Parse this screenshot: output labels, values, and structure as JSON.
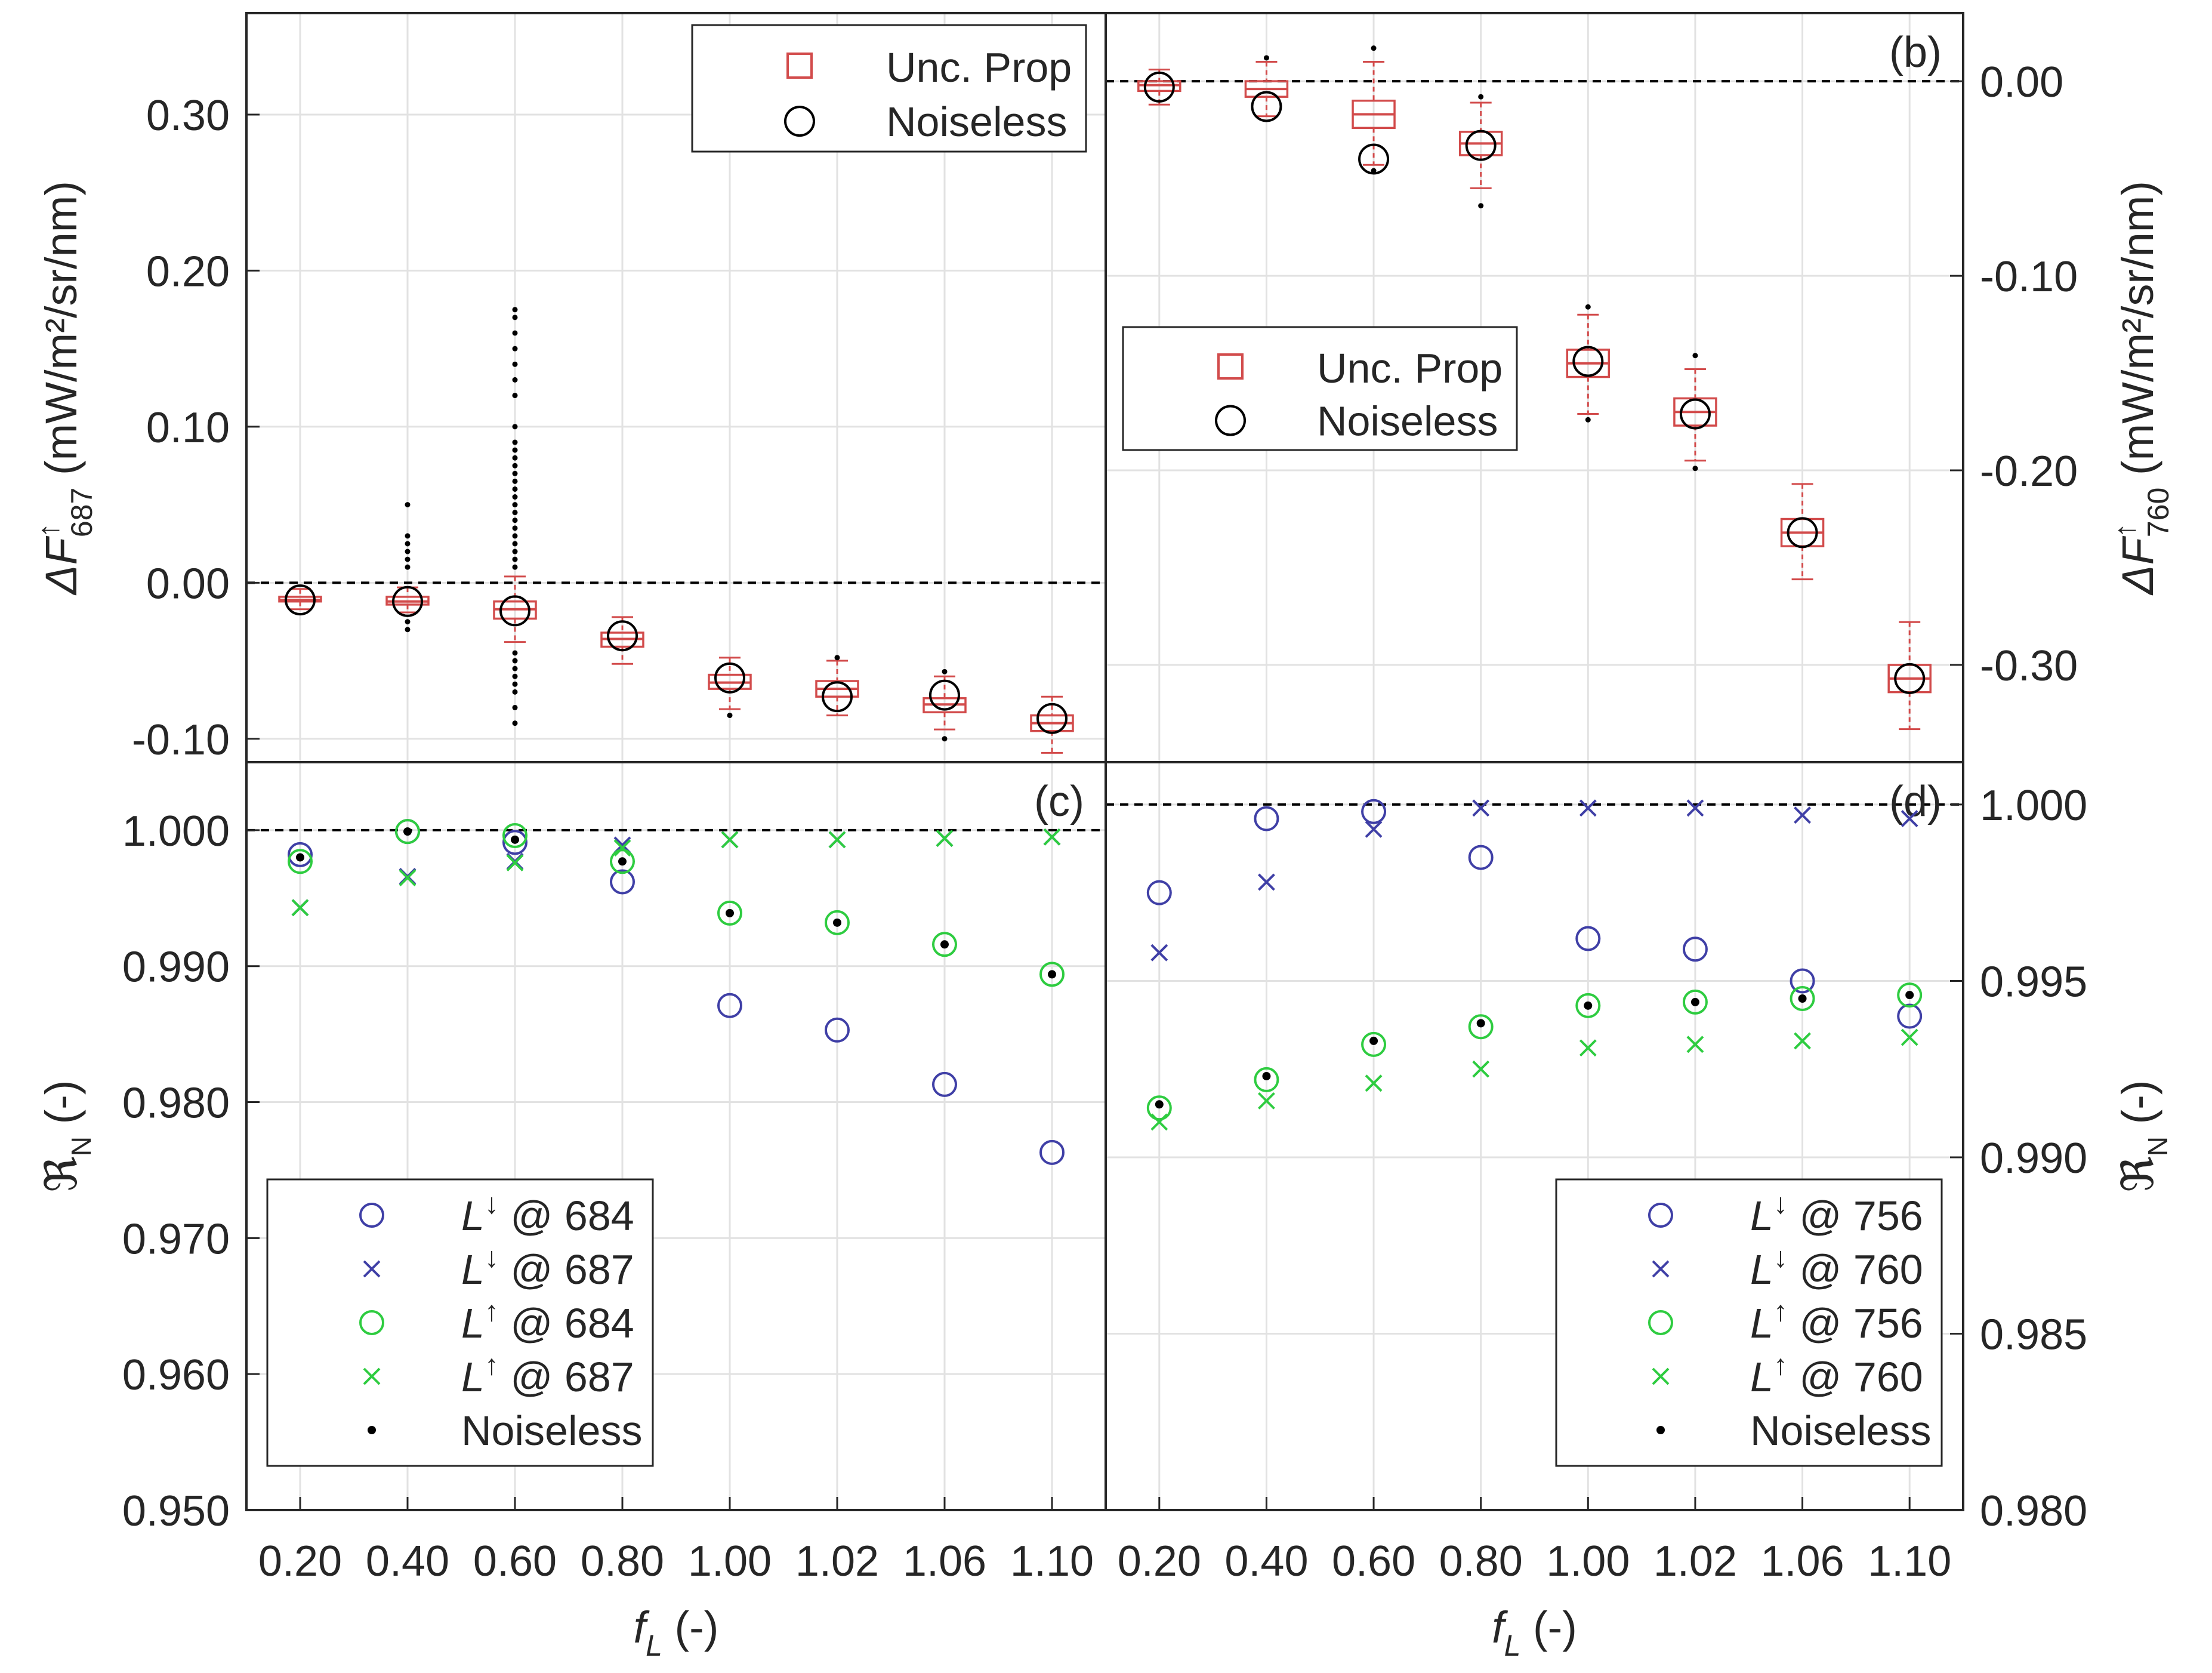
{
  "figure": {
    "categories": [
      "0.20",
      "0.40",
      "0.60",
      "0.80",
      "1.00",
      "1.02",
      "1.06",
      "1.10"
    ],
    "xlabel": "f",
    "xlabel_sub": "L",
    "xlabel_unit": "(-)",
    "colors": {
      "box": "#d24b4b",
      "blue": "#3f3fa6",
      "green": "#2ecc40",
      "black": "#000000",
      "grid": "#e2e2e2"
    }
  },
  "chart_data": [
    {
      "panel": "a",
      "type": "box",
      "label": "",
      "ylabel_prefix": "ΔF",
      "ylabel_sup": "↑",
      "ylabel_sub": "687",
      "ylabel_unit": "(mW/m²/sr/nm)",
      "ylim": [
        -0.115,
        0.365
      ],
      "yticks": [
        "-0.10",
        "0.00",
        "0.10",
        "0.20",
        "0.30"
      ],
      "ytick_values": [
        -0.1,
        0.0,
        0.1,
        0.2,
        0.3
      ],
      "reference_line": 0.0,
      "legend": {
        "position": "top-right",
        "entries": [
          "Unc. Prop",
          "Noiseless"
        ]
      },
      "series": [
        {
          "name": "Unc. Prop",
          "stat": "median",
          "values": [
            -0.011,
            -0.012,
            -0.017,
            -0.036,
            -0.064,
            -0.068,
            -0.078,
            -0.09
          ]
        },
        {
          "name": "Noiseless",
          "values": [
            -0.011,
            -0.012,
            -0.018,
            -0.034,
            -0.061,
            -0.073,
            -0.072,
            -0.087
          ]
        }
      ],
      "box_stats": {
        "q1": [
          -0.012,
          -0.014,
          -0.023,
          -0.041,
          -0.068,
          -0.073,
          -0.083,
          -0.095
        ],
        "q3": [
          -0.009,
          -0.009,
          -0.012,
          -0.032,
          -0.059,
          -0.063,
          -0.074,
          -0.085
        ],
        "whisker_low": [
          -0.017,
          -0.019,
          -0.038,
          -0.052,
          -0.081,
          -0.085,
          -0.094,
          -0.109
        ],
        "whisker_high": [
          -0.004,
          -0.003,
          0.004,
          -0.022,
          -0.048,
          -0.05,
          -0.06,
          -0.073
        ],
        "outliers": [
          [],
          [
            0.05,
            0.03,
            0.025,
            0.02,
            0.015,
            0.01,
            -0.025,
            -0.03
          ],
          [
            0.175,
            0.17,
            0.16,
            0.15,
            0.14,
            0.13,
            0.12,
            0.1,
            0.09,
            0.085,
            0.08,
            0.075,
            0.07,
            0.065,
            0.06,
            0.055,
            0.05,
            0.045,
            0.04,
            0.035,
            0.03,
            0.025,
            0.02,
            0.015,
            0.01,
            -0.045,
            -0.05,
            -0.055,
            -0.06,
            -0.065,
            -0.07,
            -0.08,
            -0.09
          ],
          [],
          [
            -0.085
          ],
          [
            -0.048
          ],
          [
            -0.057,
            -0.1
          ],
          []
        ]
      }
    },
    {
      "panel": "b",
      "type": "box",
      "label": "(b)",
      "ylabel_prefix": "ΔF",
      "ylabel_sup": "↑",
      "ylabel_sub": "760",
      "ylabel_unit": "(mW/m²/sr/nm)",
      "ylim": [
        -0.35,
        0.035
      ],
      "yticks": [
        "-0.30",
        "-0.20",
        "-0.10",
        "0.00"
      ],
      "ytick_values": [
        -0.3,
        -0.2,
        -0.1,
        0.0
      ],
      "reference_line": 0.0,
      "legend": {
        "position": "center-left",
        "entries": [
          "Unc. Prop",
          "Noiseless"
        ]
      },
      "series": [
        {
          "name": "Unc. Prop",
          "stat": "median",
          "values": [
            -0.002,
            -0.004,
            -0.017,
            -0.032,
            -0.145,
            -0.17,
            -0.232,
            -0.307
          ]
        },
        {
          "name": "Noiseless",
          "values": [
            -0.003,
            -0.013,
            -0.04,
            -0.033,
            -0.144,
            -0.171,
            -0.232,
            -0.307
          ]
        }
      ],
      "box_stats": {
        "q1": [
          -0.005,
          -0.008,
          -0.024,
          -0.038,
          -0.152,
          -0.177,
          -0.239,
          -0.314
        ],
        "q3": [
          0.0,
          0.0,
          -0.01,
          -0.026,
          -0.138,
          -0.163,
          -0.225,
          -0.3
        ],
        "whisker_low": [
          -0.012,
          -0.018,
          -0.043,
          -0.055,
          -0.171,
          -0.195,
          -0.256,
          -0.333
        ],
        "whisker_high": [
          0.006,
          0.01,
          0.01,
          -0.011,
          -0.12,
          -0.148,
          -0.207,
          -0.278
        ],
        "outliers": [
          [],
          [
            0.012
          ],
          [
            0.017,
            -0.046
          ],
          [
            -0.008,
            -0.064
          ],
          [
            -0.116,
            -0.174
          ],
          [
            -0.141,
            -0.199
          ],
          [],
          []
        ]
      }
    },
    {
      "panel": "c",
      "type": "scatter",
      "label": "(c)",
      "ylabel_symbol": "ℜ",
      "ylabel_sub": "N",
      "ylabel_unit": "(-)",
      "ylim": [
        0.95,
        1.005
      ],
      "yticks": [
        "0.950",
        "0.960",
        "0.970",
        "0.980",
        "0.990",
        "1.000"
      ],
      "ytick_values": [
        0.95,
        0.96,
        0.97,
        0.98,
        0.99,
        1.0
      ],
      "reference_line": 1.0,
      "legend": {
        "position": "bottom-left"
      },
      "series": [
        {
          "name": "L↓ @ 684",
          "marker": "circle",
          "color": "blue",
          "values": [
            0.9982,
            0.9999,
            0.9991,
            0.9962,
            0.9871,
            0.9853,
            0.9813,
            0.9763
          ]
        },
        {
          "name": "L↓ @ 687",
          "marker": "x",
          "color": "blue",
          "values": [
            0.9943,
            0.9966,
            0.9977,
            0.9989,
            0.9993,
            0.9993,
            0.9994,
            0.9995
          ]
        },
        {
          "name": "L↑ @ 684",
          "marker": "circle",
          "color": "green",
          "values": [
            0.9977,
            0.9999,
            0.9996,
            0.9977,
            0.9939,
            0.9932,
            0.9916,
            0.9894
          ]
        },
        {
          "name": "L↑ @ 687",
          "marker": "x",
          "color": "green",
          "values": [
            0.9943,
            0.9965,
            0.9976,
            0.9987,
            0.9993,
            0.9993,
            0.9994,
            0.9995
          ]
        },
        {
          "name": "Noiseless",
          "marker": "dot",
          "color": "black",
          "values": [
            0.998,
            0.9999,
            0.9993,
            0.9977,
            0.9939,
            0.9932,
            0.9916,
            0.9894
          ]
        }
      ],
      "legend_entries": [
        {
          "base": "L",
          "sup": "↓",
          "rest": " @ 684"
        },
        {
          "base": "L",
          "sup": "↓",
          "rest": " @ 687"
        },
        {
          "base": "L",
          "sup": "↑",
          "rest": " @ 684"
        },
        {
          "base": "L",
          "sup": "↑",
          "rest": " @ 687"
        },
        {
          "base": "",
          "sup": "",
          "rest": "Noiseless"
        }
      ]
    },
    {
      "panel": "d",
      "type": "scatter",
      "label": "(d)",
      "ylabel_symbol": "ℜ",
      "ylabel_sub": "N",
      "ylabel_unit": "(-)",
      "ylim": [
        0.98,
        1.0012
      ],
      "yticks": [
        "0.980",
        "0.985",
        "0.990",
        "0.995",
        "1.000"
      ],
      "ytick_values": [
        0.98,
        0.985,
        0.99,
        0.995,
        1.0
      ],
      "reference_line": 1.0,
      "legend": {
        "position": "bottom-right"
      },
      "series": [
        {
          "name": "L↓ @ 756",
          "marker": "circle",
          "color": "blue",
          "values": [
            0.9975,
            0.9996,
            0.9998,
            0.9985,
            0.9962,
            0.9959,
            0.995,
            0.994
          ]
        },
        {
          "name": "L↓ @ 760",
          "marker": "x",
          "color": "blue",
          "values": [
            0.9958,
            0.9978,
            0.9993,
            0.9999,
            0.9999,
            0.9999,
            0.9997,
            0.9996
          ]
        },
        {
          "name": "L↑ @ 756",
          "marker": "circle",
          "color": "green",
          "values": [
            0.9914,
            0.9922,
            0.9932,
            0.9937,
            0.9943,
            0.9944,
            0.9945,
            0.9946
          ]
        },
        {
          "name": "L↑ @ 760",
          "marker": "x",
          "color": "green",
          "values": [
            0.991,
            0.9916,
            0.9921,
            0.9925,
            0.9931,
            0.9932,
            0.9933,
            0.9934
          ]
        },
        {
          "name": "Noiseless",
          "marker": "dot",
          "color": "black",
          "values": [
            0.9915,
            0.9923,
            0.9933,
            0.9938,
            0.9943,
            0.9944,
            0.9945,
            0.9946
          ]
        }
      ],
      "legend_entries": [
        {
          "base": "L",
          "sup": "↓",
          "rest": " @ 756"
        },
        {
          "base": "L",
          "sup": "↓",
          "rest": " @ 760"
        },
        {
          "base": "L",
          "sup": "↑",
          "rest": " @ 756"
        },
        {
          "base": "L",
          "sup": "↑",
          "rest": " @ 760"
        },
        {
          "base": "",
          "sup": "",
          "rest": "Noiseless"
        }
      ]
    }
  ],
  "legend_box": {
    "entries": [
      "Unc. Prop",
      "Noiseless"
    ]
  }
}
